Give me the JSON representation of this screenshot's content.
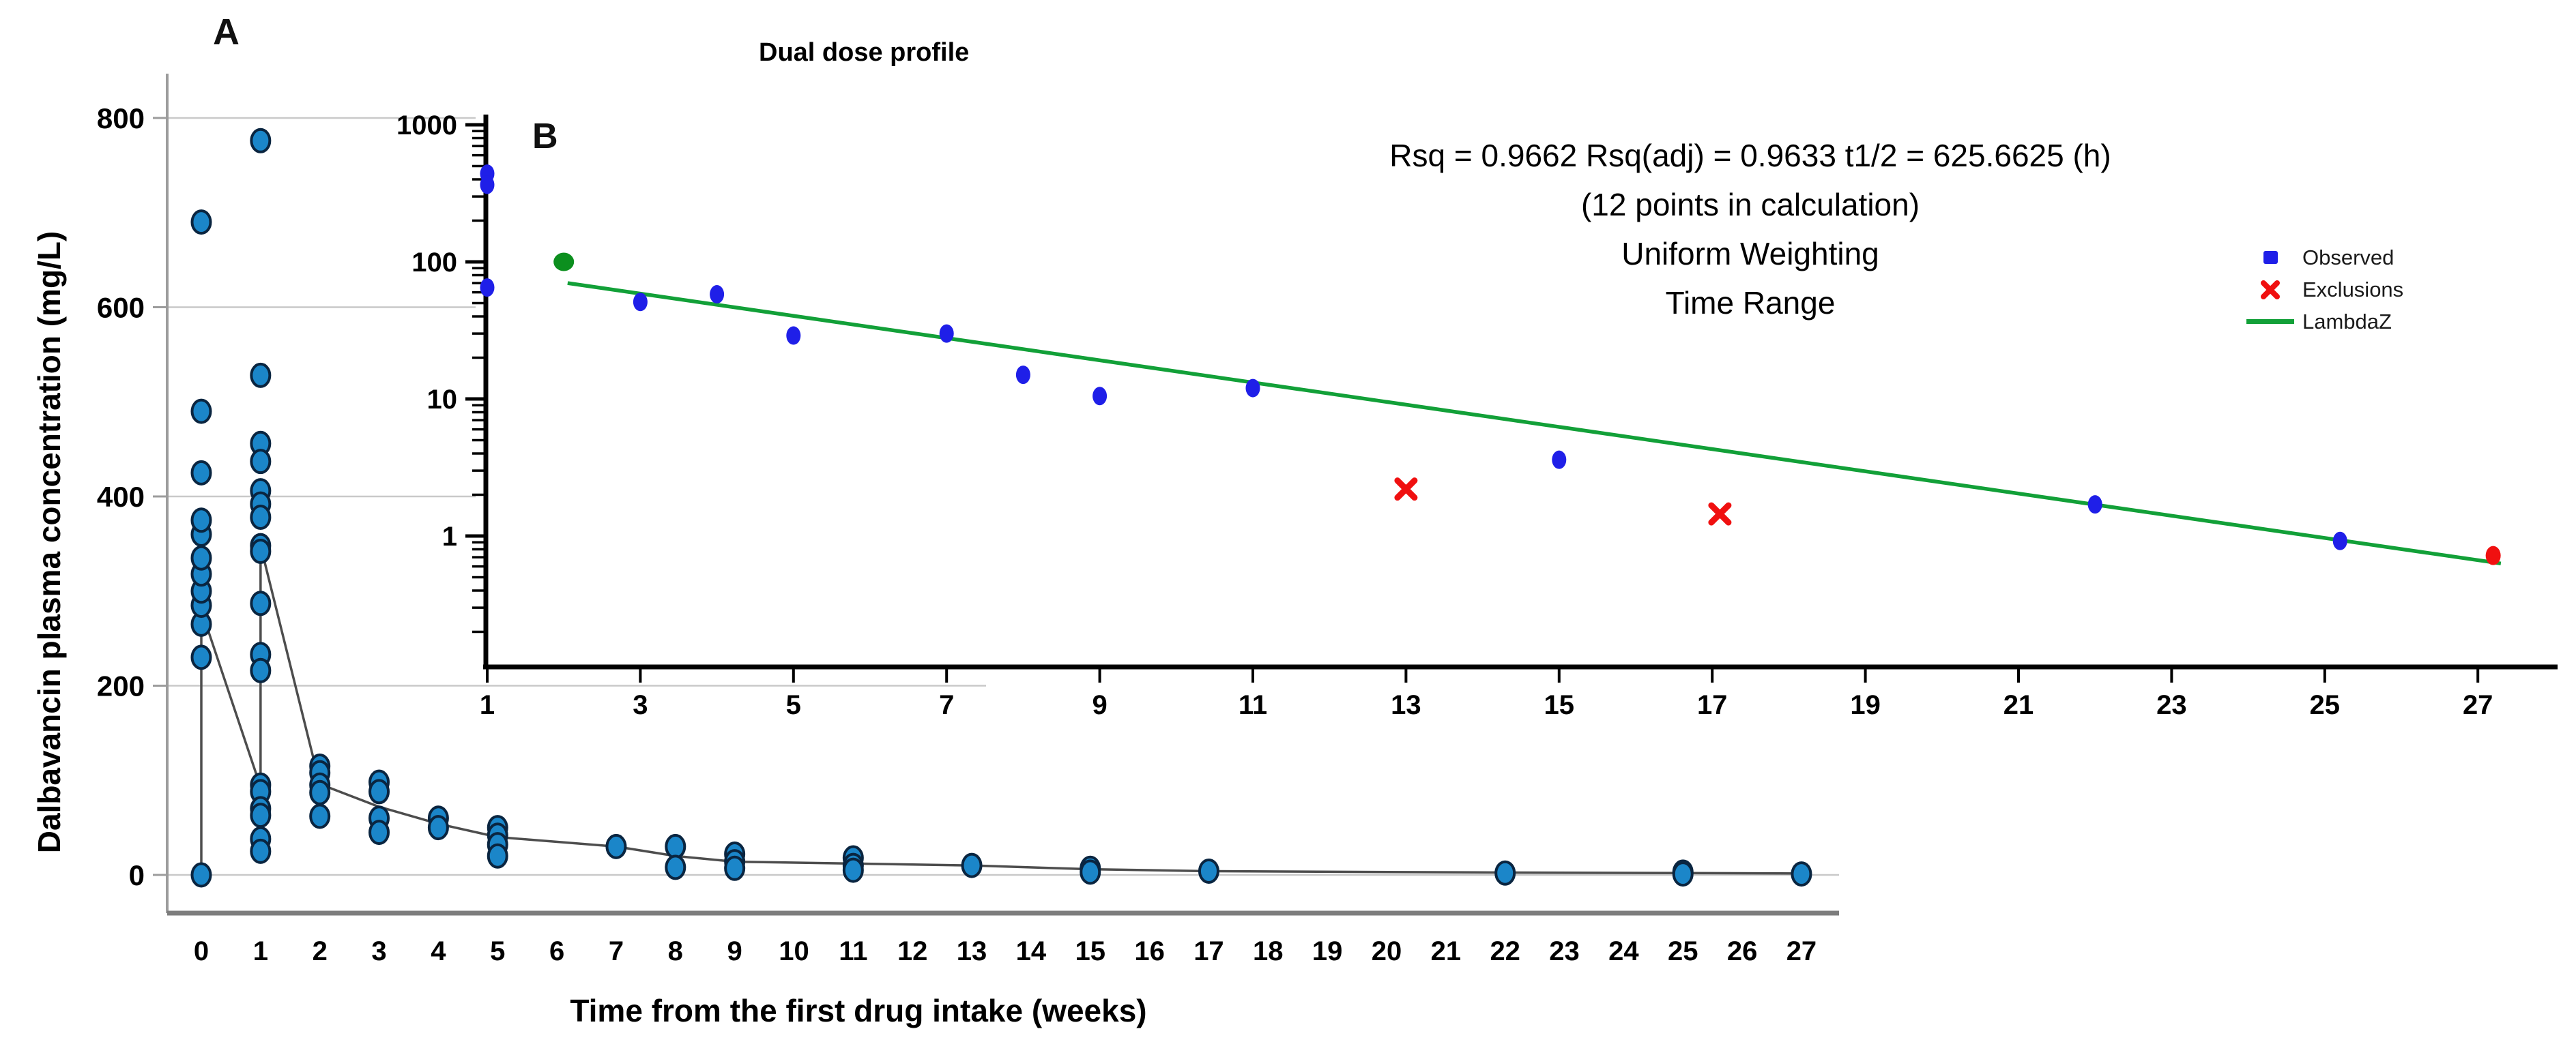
{
  "chart_data": [
    {
      "id": "panel-a",
      "type": "scatter",
      "panel_label": "A",
      "xlabel": "Time from the first drug intake (weeks)",
      "ylabel": "Dalbavancin plasma concentration (mg/L)",
      "x_ticks": [
        0,
        1,
        2,
        3,
        4,
        5,
        6,
        7,
        8,
        9,
        10,
        11,
        12,
        13,
        14,
        15,
        16,
        17,
        18,
        19,
        20,
        21,
        22,
        23,
        24,
        25,
        26,
        27
      ],
      "y_ticks": [
        0,
        200,
        400,
        600,
        800
      ],
      "xlim": [
        0,
        27
      ],
      "ylim": [
        0,
        860
      ],
      "grid": true,
      "series": [
        {
          "week": 0,
          "values": [
            0,
            230,
            265,
            285,
            300,
            318,
            335,
            360,
            375,
            425,
            490,
            690
          ]
        },
        {
          "week": 1,
          "values": [
            776,
            528,
            456,
            437,
            406,
            392,
            378,
            348,
            342,
            287,
            233,
            216,
            95,
            88,
            70,
            63,
            38,
            25
          ]
        },
        {
          "week": 2,
          "values": [
            115,
            108,
            95,
            87,
            62
          ]
        },
        {
          "week": 3,
          "values": [
            98,
            88,
            60,
            45
          ]
        },
        {
          "week": 4,
          "values": [
            60,
            50
          ]
        },
        {
          "week": 5,
          "values": [
            50,
            42,
            32,
            20
          ]
        },
        {
          "week": 7,
          "values": [
            30
          ]
        },
        {
          "week": 8,
          "values": [
            30,
            8
          ]
        },
        {
          "week": 9,
          "values": [
            22,
            14,
            7
          ]
        },
        {
          "week": 11,
          "values": [
            18,
            10,
            5
          ]
        },
        {
          "week": 13,
          "values": [
            10
          ]
        },
        {
          "week": 15,
          "values": [
            7,
            3
          ]
        },
        {
          "week": 17,
          "values": [
            4
          ]
        },
        {
          "week": 22,
          "values": [
            2
          ]
        },
        {
          "week": 25,
          "values": [
            3,
            1
          ]
        },
        {
          "week": 27,
          "values": [
            1
          ]
        }
      ],
      "trend_line": [
        [
          0,
          0
        ],
        [
          0,
          280
        ],
        [
          1,
          93
        ],
        [
          1,
          348
        ],
        [
          2,
          96
        ],
        [
          3,
          72
        ],
        [
          4,
          54
        ],
        [
          5,
          40
        ],
        [
          7,
          30
        ],
        [
          8,
          20
        ],
        [
          9,
          14
        ],
        [
          11,
          12
        ],
        [
          13,
          10
        ],
        [
          15,
          6
        ],
        [
          17,
          4
        ],
        [
          22,
          2.5
        ],
        [
          25,
          2
        ],
        [
          27,
          1.5
        ]
      ],
      "colors": {
        "marker_fill": "#1b86c9",
        "marker_stroke": "#0a2540",
        "trend_line": "#4d4d4d",
        "grid": "#c9c9c9",
        "axis": "#9c9c9c",
        "baseline": "#7d7d7d"
      }
    },
    {
      "id": "panel-b",
      "type": "scatter",
      "y_scale": "log",
      "panel_label": "B",
      "title": "Dual dose profile",
      "stats_lines": [
        "Rsq = 0.9662 Rsq(adj) = 0.9633 t1/2 = 625.6625 (h)",
        "(12 points in calculation)",
        "Uniform Weighting",
        "Time Range"
      ],
      "x_ticks": [
        1,
        3,
        5,
        7,
        9,
        11,
        13,
        15,
        17,
        19,
        21,
        23,
        25,
        27
      ],
      "y_ticks": [
        1000,
        100,
        10,
        1
      ],
      "xlim": [
        1,
        27.5
      ],
      "ylim": [
        0.12,
        1200
      ],
      "grid": false,
      "series": [
        {
          "name": "Observed",
          "marker": "circle",
          "color": "#1f1fe8",
          "points": [
            [
              1,
              440
            ],
            [
              1,
              365
            ],
            [
              1,
              65
            ],
            [
              3,
              51
            ],
            [
              4,
              58
            ],
            [
              5,
              29
            ],
            [
              7,
              30
            ],
            [
              8,
              15
            ],
            [
              9,
              10.5
            ],
            [
              11,
              12
            ],
            [
              15,
              3.6
            ],
            [
              22,
              1.7
            ],
            [
              25.2,
              0.92
            ]
          ]
        },
        {
          "name": "Exclusions",
          "marker": "x",
          "color": "#f01010",
          "points": [
            [
              13,
              2.2
            ],
            [
              17.1,
              1.45
            ]
          ]
        },
        {
          "name": "LambdaZ",
          "marker": "line",
          "color": "#12a038",
          "line": [
            [
              2.05,
              70
            ],
            [
              27.3,
              0.63
            ]
          ],
          "start_point": {
            "xy": [
              2,
              100
            ],
            "color": "#0c8f1e"
          },
          "end_point": {
            "xy": [
              27.2,
              0.72
            ],
            "color": "#f01010"
          }
        }
      ],
      "legend": [
        {
          "label": "Observed",
          "color": "#1f1fe8"
        },
        {
          "label": "Exclusions",
          "color": "#f01010"
        },
        {
          "label": "LambdaZ",
          "color": "#12a038"
        }
      ],
      "axis_color": "#000000"
    }
  ]
}
